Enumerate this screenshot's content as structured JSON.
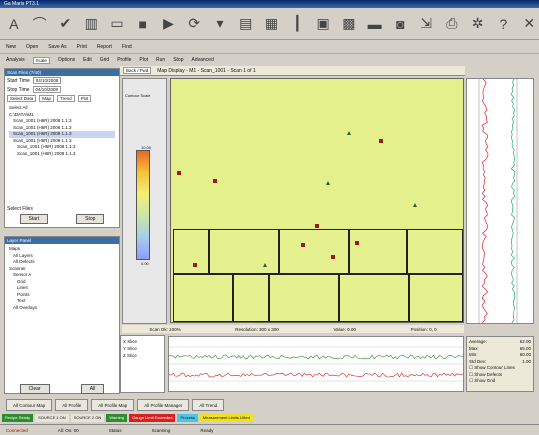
{
  "window": {
    "title": "Ga Maris PT3.1"
  },
  "toolbar": {
    "icons": [
      "font-icon",
      "path-icon",
      "check-icon",
      "layers-icon",
      "window-icon",
      "stop-icon",
      "media-icon",
      "refresh-icon",
      "filter-icon",
      "chart-icon",
      "grid-icon",
      "bars-icon",
      "calendar-icon",
      "table-icon",
      "monitor-icon",
      "capture-icon",
      "export-icon",
      "print-icon",
      "settings-icon",
      "help-icon",
      "close-icon"
    ],
    "secondary": [
      "New",
      "Open",
      "Save As",
      "Print",
      "Report",
      "Find"
    ],
    "third": [
      "Analysis",
      "Scale",
      "Options",
      "Edit",
      "Grid",
      "Profile",
      "Plot",
      "Run",
      "Stop",
      "Advanced"
    ]
  },
  "left_panel": {
    "title": "Scan Files (7/40)",
    "start_label": "Start Time",
    "start_value": "04/10/2008",
    "end_label": "Stop Time",
    "end_value": "04/10/2008",
    "tabs": [
      "Select Data",
      "Map",
      "Trend",
      "Plot"
    ],
    "tree": [
      "Select All",
      "C:\\DATA\\M1",
      "Scan_1001 (H6R) 2008 1.1.3",
      "Scan_1001 (H6R) 2008 1.1.3",
      "Scan_1001 (H6R) 2008 1.1.3",
      "Scan_1001 (H6R) 2008 1.1.3",
      "Scan_1001 (H6R) 2008 1.1.3",
      "Scan_1001 (H6R) 2008 1.1.3"
    ],
    "footer": "Select Files",
    "btn_start": "Start",
    "btn_stop": "Stop"
  },
  "left_bottom": {
    "title": "Layer Panel",
    "tree": [
      "Maps",
      "All Layers",
      "All Defects",
      "Scanner",
      "Sensor A",
      "Grid",
      "Lines",
      "Points",
      "Text",
      "All Overlays"
    ],
    "btn_clear": "Clear",
    "btn_all": "All"
  },
  "main": {
    "header_left": "Back / Fwd",
    "header_title": "Map Display - M1 - Scan_1001 - Scan 1 of 1",
    "scale_top": "10.00",
    "scale_bottom": "0.00",
    "scale_label": "Contour Scale",
    "info": [
      "Scan Ok: 100%",
      "Resolution: 300 x 300",
      "Value: 0.00",
      "Position: 0, 0"
    ]
  },
  "bottom_left": {
    "items": [
      "X Slice",
      "Y Slice",
      "Z Slice"
    ]
  },
  "stats": {
    "labels": [
      "Average:",
      "Max:",
      "Min:",
      "Std Dev:"
    ],
    "values": [
      "62.00",
      "65.00",
      "60.00",
      "1.00"
    ],
    "checks": [
      "Show Contour Lines",
      "Show Defects",
      "Show Grid"
    ]
  },
  "tabs": [
    "All Contour Map",
    "All Profile",
    "All Profile Map",
    "All Profile Manager",
    "All Trend"
  ],
  "alarms": [
    {
      "text": "Recipe Ready",
      "color": "#2e8b2e"
    },
    {
      "text": "SOURCE 1 ON",
      "color": "#e8e4da"
    },
    {
      "text": "SOURCE 2 ON",
      "color": "#e8e4da"
    },
    {
      "text": "Warning",
      "color": "#2e8b2e"
    },
    {
      "text": "Gauge Limit Exceeded",
      "color": "#d82020"
    },
    {
      "text": "Process",
      "color": "#4ec4e4"
    },
    {
      "text": "Measurement Limits Lifted",
      "color": "#f0e020"
    }
  ],
  "status": [
    "Connected",
    "All: On: 00",
    "Status",
    "Scanning",
    "",
    "Ready"
  ]
}
